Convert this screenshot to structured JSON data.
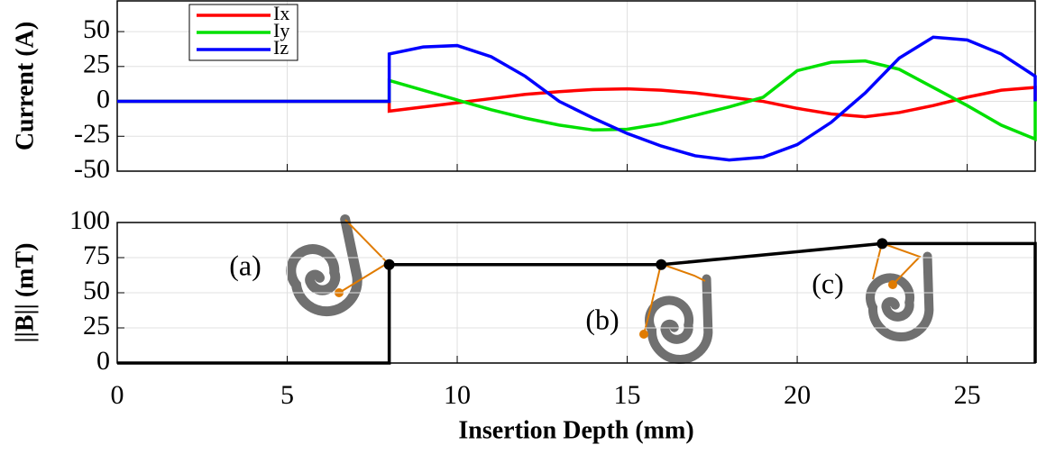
{
  "chart_data": [
    {
      "type": "line",
      "ylabel": "Current (A)",
      "x": [
        0,
        8,
        8,
        9,
        10,
        11,
        12,
        13,
        14,
        15,
        16,
        17,
        18,
        19,
        20,
        21,
        22,
        23,
        24,
        25,
        26,
        27,
        27
      ],
      "series": [
        {
          "name": "Ix",
          "color": "#ff0000",
          "values": [
            0,
            0,
            -7,
            -4,
            -1,
            2,
            5,
            7,
            8.5,
            9,
            8,
            6,
            3,
            0,
            -5,
            -9,
            -11,
            -8,
            -3,
            3,
            8,
            10,
            0
          ]
        },
        {
          "name": "Iy",
          "color": "#00e000",
          "values": [
            0,
            0,
            15,
            8,
            1,
            -6,
            -12,
            -17,
            -20.5,
            -20,
            -16,
            -10,
            -4,
            3,
            22,
            28,
            29,
            23,
            10,
            -3,
            -17,
            -27,
            0
          ]
        },
        {
          "name": "Iz",
          "color": "#0000ff",
          "values": [
            0,
            0,
            34,
            39,
            40,
            32,
            18,
            0,
            -12,
            -23,
            -32,
            -39,
            -42,
            -40,
            -31,
            -15,
            6,
            31,
            46,
            44,
            34,
            18,
            0
          ]
        }
      ],
      "xlim": [
        0,
        27
      ],
      "ylim": [
        -50,
        72
      ],
      "xticks": [
        0,
        5,
        10,
        15,
        20,
        25
      ],
      "yticks": [
        -50,
        -25,
        0,
        25,
        50
      ],
      "grid": true,
      "legend": "upper left"
    },
    {
      "type": "line",
      "ylabel": "||B|| (mT)",
      "xlabel": "Insertion Depth (mm)",
      "x": [
        0,
        8,
        8,
        16,
        22.5,
        27,
        27
      ],
      "series": [
        {
          "color": "#000000",
          "values": [
            0,
            0,
            70,
            70,
            85,
            85,
            0
          ]
        }
      ],
      "points": {
        "x": [
          8,
          16,
          22.5
        ],
        "values": [
          70,
          70,
          85
        ]
      },
      "annotations": [
        "(a)",
        "(b)",
        "(c)"
      ],
      "xlim": [
        0,
        27
      ],
      "ylim": [
        0,
        100
      ],
      "xticks": [
        0,
        5,
        10,
        15,
        20,
        25
      ],
      "yticks": [
        0,
        25,
        50,
        75,
        100
      ],
      "grid": true
    }
  ]
}
